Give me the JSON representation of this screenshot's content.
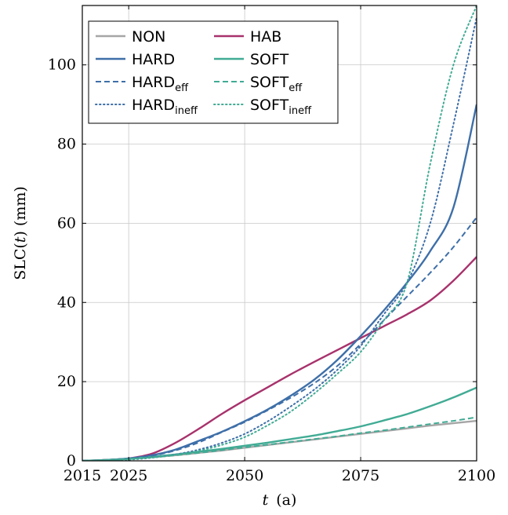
{
  "chart_data": {
    "type": "line",
    "xlabel_var": "t",
    "xlabel_unit": "(a)",
    "ylabel_prefix": "SLC(",
    "ylabel_var": "t",
    "ylabel_suffix": ") (mm)",
    "xlim": [
      2015,
      2100
    ],
    "ylim": [
      0,
      115
    ],
    "xticks": [
      2015,
      2025,
      2050,
      2075,
      2100
    ],
    "yticks": [
      0,
      20,
      40,
      60,
      80,
      100
    ],
    "grid": true,
    "legend_placement": "top-left",
    "x": [
      2015,
      2020,
      2025,
      2030,
      2035,
      2040,
      2045,
      2050,
      2055,
      2060,
      2065,
      2070,
      2075,
      2080,
      2085,
      2090,
      2095,
      2100
    ],
    "series": [
      {
        "name": "NON",
        "sub": "",
        "color": "#a6a6a6",
        "dash": "solid",
        "values": [
          0,
          0.2,
          0.5,
          0.9,
          1.4,
          2.0,
          2.6,
          3.3,
          4.0,
          4.7,
          5.4,
          6.1,
          6.8,
          7.5,
          8.2,
          8.9,
          9.5,
          10.1
        ]
      },
      {
        "name": "HAB",
        "sub": "",
        "color": "#a8326c",
        "dash": "solid",
        "values": [
          0,
          0.2,
          0.6,
          1.8,
          4.5,
          8.0,
          11.8,
          15.3,
          18.6,
          21.9,
          25.0,
          28.0,
          31.0,
          34.0,
          37.0,
          40.5,
          45.5,
          51.5
        ]
      },
      {
        "name": "HARD",
        "sub": "",
        "color": "#3e6fa8",
        "dash": "solid",
        "values": [
          0,
          0.2,
          0.6,
          1.4,
          2.8,
          5.0,
          7.3,
          10.0,
          13.0,
          16.5,
          20.5,
          25.5,
          31.5,
          38.0,
          45.0,
          53.0,
          64.0,
          90.0
        ]
      },
      {
        "name": "SOFT",
        "sub": "",
        "color": "#41ab94",
        "dash": "solid",
        "values": [
          0,
          0.2,
          0.5,
          1.0,
          1.6,
          2.3,
          3.0,
          3.8,
          4.6,
          5.5,
          6.4,
          7.5,
          8.7,
          10.2,
          11.8,
          13.8,
          16.0,
          18.5
        ]
      },
      {
        "name": "HARD",
        "sub": "eff",
        "color": "#3e6fa8",
        "dash": "dashed",
        "values": [
          0,
          0.2,
          0.6,
          1.3,
          2.6,
          4.6,
          7.2,
          9.8,
          12.8,
          16.0,
          19.6,
          24.0,
          29.5,
          35.5,
          41.5,
          47.5,
          54.0,
          61.5
        ]
      },
      {
        "name": "SOFT",
        "sub": "eff",
        "color": "#41ab94",
        "dash": "dashed",
        "values": [
          0,
          0.2,
          0.5,
          0.9,
          1.4,
          2.0,
          2.7,
          3.4,
          4.1,
          4.8,
          5.5,
          6.2,
          7.0,
          7.7,
          8.5,
          9.3,
          10.1,
          11.0
        ]
      },
      {
        "name": "HARD",
        "sub": "ineff",
        "color": "#3e6fa8",
        "dash": "dotted",
        "values": [
          0,
          0.1,
          0.3,
          0.8,
          1.6,
          2.8,
          4.5,
          6.8,
          10.0,
          13.8,
          18.0,
          23.0,
          29.0,
          37.0,
          45.0,
          60.0,
          85.0,
          112.0
        ]
      },
      {
        "name": "SOFT",
        "sub": "ineff",
        "color": "#41ab94",
        "dash": "dotted",
        "values": [
          0,
          0.1,
          0.3,
          0.8,
          1.5,
          2.5,
          4.0,
          6.0,
          9.0,
          12.5,
          17.0,
          22.0,
          27.5,
          35.5,
          45.0,
          75.0,
          100.0,
          115.0
        ]
      }
    ]
  }
}
